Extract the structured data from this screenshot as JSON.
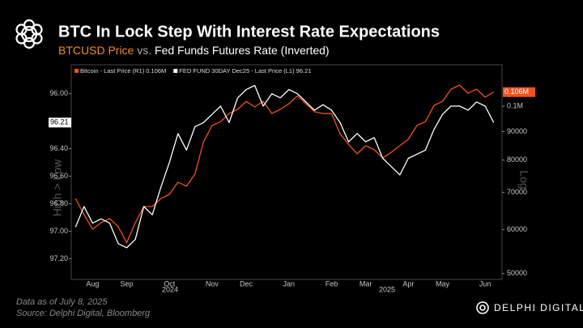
{
  "chart_data": {
    "type": "line",
    "title": "BTC In Lock Step With Interest Rate Expectations",
    "subtitle": [
      "BTCUSD Price",
      "vs.",
      "Fed Funds Futures Rate (Inverted)"
    ],
    "y_label": "High > Low",
    "y2_label": "Log",
    "categories": [
      null,
      null,
      "Aug",
      null,
      null,
      null,
      "Sep",
      null,
      null,
      null,
      null,
      "Oct",
      null,
      null,
      null,
      null,
      "Nov",
      null,
      null,
      null,
      "Dec",
      null,
      null,
      null,
      null,
      "Jan",
      null,
      null,
      null,
      null,
      "Feb",
      null,
      null,
      null,
      "Mar",
      null,
      null,
      null,
      null,
      "Apr",
      null,
      null,
      null,
      "May",
      null,
      null,
      null,
      null,
      "Jun",
      null
    ],
    "year_labels": [
      "2024",
      "2025"
    ],
    "series": [
      {
        "name": "Bitcoin - Last Price (R1) 0.106M",
        "color": "#f0521e",
        "axis": "y2",
        "values": [
          68200,
          63800,
          60100,
          61700,
          62800,
          60700,
          56800,
          61700,
          66000,
          66000,
          68200,
          69400,
          73000,
          71800,
          75500,
          86300,
          92300,
          93800,
          97000,
          98700,
          102000,
          99700,
          102000,
          97000,
          98700,
          101000,
          104400,
          101000,
          97700,
          97000,
          97000,
          89200,
          85400,
          82100,
          84900,
          83500,
          80700,
          82600,
          84900,
          87200,
          92300,
          93800,
          100300,
          102000,
          107300,
          109100,
          105500,
          107300,
          103800,
          106000
        ],
        "value_labels": [
          null,
          null,
          null,
          null,
          null,
          null,
          null,
          null,
          null,
          null,
          null,
          null,
          null,
          null,
          null,
          null,
          null,
          null,
          null,
          null,
          null,
          null,
          null,
          null,
          null,
          null,
          null,
          null,
          null,
          null,
          null,
          null,
          null,
          null,
          null,
          null,
          null,
          null,
          null,
          null,
          null,
          null,
          null,
          null,
          null,
          null,
          null,
          null,
          null,
          "0.106M"
        ]
      },
      {
        "name": "FED FUND 30DAY Dec25 - Last Price (L1) 96.21",
        "color": "#ffffff",
        "axis": "y",
        "values": [
          96.97,
          96.82,
          96.94,
          96.91,
          96.94,
          97.09,
          97.12,
          97.06,
          96.82,
          96.88,
          96.68,
          96.5,
          96.29,
          96.41,
          96.24,
          96.21,
          96.15,
          96.09,
          96.21,
          96.03,
          95.97,
          95.94,
          96.09,
          96.0,
          96.03,
          95.97,
          96.0,
          96.06,
          96.12,
          96.08,
          96.12,
          96.21,
          96.35,
          96.29,
          96.35,
          96.32,
          96.47,
          96.53,
          96.59,
          96.47,
          96.44,
          96.41,
          96.26,
          96.15,
          96.09,
          96.09,
          96.12,
          96.06,
          96.09,
          96.21
        ],
        "value_labels": [
          null,
          null,
          null,
          null,
          null,
          null,
          null,
          null,
          null,
          null,
          null,
          null,
          null,
          null,
          null,
          null,
          null,
          null,
          null,
          null,
          null,
          null,
          null,
          null,
          null,
          null,
          null,
          null,
          null,
          null,
          null,
          null,
          null,
          null,
          null,
          null,
          null,
          null,
          null,
          null,
          null,
          null,
          null,
          null,
          null,
          null,
          null,
          null,
          null,
          "96.21"
        ]
      }
    ],
    "ylim": [
      95.79,
      97.35
    ],
    "y_inverted": true,
    "yticks": [
      {
        "value": 96,
        "label": "96.00"
      },
      {
        "value": 96.4,
        "label": "96.40"
      },
      {
        "value": 96.6,
        "label": "96.60"
      },
      {
        "value": 96.8,
        "label": "96.80"
      },
      {
        "value": 97,
        "label": "97.00"
      },
      {
        "value": 97.2,
        "label": "97.20"
      }
    ],
    "y2lim": [
      48800,
      118700
    ],
    "y2_log": true,
    "y2ticks": [
      {
        "value": 100000,
        "label": "0.1M"
      },
      90000,
      80000,
      70000,
      60000,
      50000
    ],
    "grid": false
  },
  "footer": {
    "date_note": "Data as of July 8, 2025",
    "source": "Source: Delphi Digital, Bloomberg",
    "brand": "DELPHI DIGITAL"
  }
}
